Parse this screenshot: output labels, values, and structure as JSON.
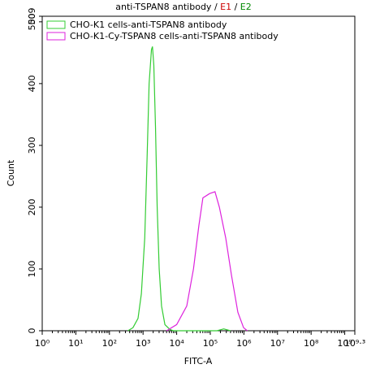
{
  "chart_data": {
    "type": "line",
    "title_segments": [
      {
        "text": "anti-TSPAN8 antibody / ",
        "color": "#000000"
      },
      {
        "text": "E1",
        "color": "#cc0000"
      },
      {
        "text": " / ",
        "color": "#000000"
      },
      {
        "text": "E2",
        "color": "#008800"
      }
    ],
    "x_label": "FITC-A",
    "y_label": "Count",
    "x_log": true,
    "xlim": [
      1,
      1995262315
    ],
    "xticks": [
      {
        "value": 1,
        "label": "10⁰"
      },
      {
        "value": 10,
        "label": "10¹"
      },
      {
        "value": 100,
        "label": "10²"
      },
      {
        "value": 1000,
        "label": "10³"
      },
      {
        "value": 10000,
        "label": "10⁴"
      },
      {
        "value": 100000,
        "label": "10⁵"
      },
      {
        "value": 1000000,
        "label": "10⁶"
      },
      {
        "value": 10000000,
        "label": "10⁷"
      },
      {
        "value": 100000000,
        "label": "10⁸"
      },
      {
        "value": 1000000000,
        "label": "10⁹"
      },
      {
        "value": 1995262315,
        "label": "10⁹·³"
      }
    ],
    "ylim": [
      0,
      509
    ],
    "yticks": [
      0,
      100,
      200,
      300,
      400,
      500,
      509
    ],
    "legend": "top-left",
    "series": [
      {
        "name": "CHO-K1 cells-anti-TSPAN8 antibody",
        "color": "#33cc33",
        "x": [
          355,
          501,
          708,
          891,
          1122,
          1318,
          1514,
          1778,
          1905,
          2089,
          2344,
          2630,
          3020,
          3548,
          4467,
          6310,
          7943,
          158489,
          251189,
          398107
        ],
        "values": [
          0,
          5,
          20,
          60,
          150,
          280,
          400,
          455,
          460,
          430,
          330,
          200,
          100,
          40,
          10,
          2,
          0,
          0,
          3,
          0
        ]
      },
      {
        "name": "CHO-K1-Cy-TSPAN8 cells-anti-TSPAN8 antibody",
        "color": "#dd22dd",
        "x": [
          5012,
          10000,
          19953,
          31623,
          45709,
          60256,
          95499,
          138038,
          186209,
          288403,
          426580,
          660693,
          977237,
          1258925
        ],
        "values": [
          0,
          10,
          40,
          100,
          170,
          215,
          222,
          225,
          200,
          150,
          90,
          30,
          5,
          0
        ]
      }
    ]
  }
}
